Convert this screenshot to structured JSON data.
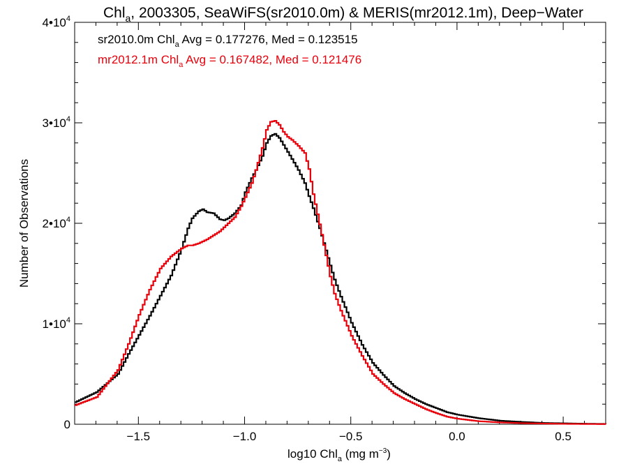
{
  "chart_data": {
    "type": "line",
    "title": {
      "prefix": "Chl",
      "sub": "a",
      "rest": ", 2003305, SeaWiFS(sr2010.0m) & MERIS(mr2012.1m), Deep−Water"
    },
    "xlabel": {
      "prefix": "log10 Chl",
      "sub": "a",
      "mid": " (mg m",
      "sup": "−3",
      "end": ")"
    },
    "ylabel": "Number of Observations",
    "xlim": [
      -1.8,
      0.7
    ],
    "ylim": [
      0,
      40000
    ],
    "x_ticks": [
      {
        "value": -1.5,
        "label": "−1.5"
      },
      {
        "value": -1.0,
        "label": "−1.0"
      },
      {
        "value": -0.5,
        "label": "−0.5"
      },
      {
        "value": 0.0,
        "label": "0.0"
      },
      {
        "value": 0.5,
        "label": "0.5"
      }
    ],
    "x_minor_step": 0.1,
    "y_ticks": [
      {
        "value": 0,
        "mant": "0",
        "exp": ""
      },
      {
        "value": 10000,
        "mant": "1•10",
        "exp": "4"
      },
      {
        "value": 20000,
        "mant": "2•10",
        "exp": "4"
      },
      {
        "value": 30000,
        "mant": "3•10",
        "exp": "4"
      },
      {
        "value": 40000,
        "mant": "4•10",
        "exp": "4"
      }
    ],
    "y_minor_step": 2000,
    "grid": false,
    "legend_position": "top-left",
    "series": [
      {
        "name": "sr2010.0m",
        "color": "#000000",
        "legend": {
          "pre": "sr2010.0m Chl",
          "sub": "a",
          "post": " Avg = 0.177276, Med = 0.123515"
        },
        "x": [
          -1.8,
          -1.7,
          -1.6,
          -1.55,
          -1.5,
          -1.45,
          -1.4,
          -1.35,
          -1.3,
          -1.27,
          -1.25,
          -1.22,
          -1.2,
          -1.18,
          -1.15,
          -1.12,
          -1.1,
          -1.08,
          -1.05,
          -1.02,
          -1.0,
          -0.97,
          -0.95,
          -0.92,
          -0.9,
          -0.88,
          -0.86,
          -0.84,
          -0.82,
          -0.8,
          -0.78,
          -0.75,
          -0.72,
          -0.7,
          -0.68,
          -0.65,
          -0.62,
          -0.6,
          -0.58,
          -0.55,
          -0.5,
          -0.45,
          -0.4,
          -0.35,
          -0.3,
          -0.25,
          -0.2,
          -0.15,
          -0.1,
          -0.05,
          0.0,
          0.1,
          0.2,
          0.3,
          0.4,
          0.5,
          0.6,
          0.7
        ],
        "y": [
          2200,
          3200,
          5000,
          7000,
          8900,
          10800,
          12800,
          14800,
          17500,
          19500,
          20500,
          21200,
          21400,
          21100,
          21000,
          20400,
          20300,
          20500,
          21000,
          21800,
          23100,
          24500,
          25300,
          26700,
          28000,
          28700,
          28900,
          28500,
          27800,
          27100,
          26400,
          25300,
          24000,
          22700,
          21500,
          19500,
          17300,
          15800,
          14400,
          12700,
          10100,
          7900,
          6100,
          4900,
          3800,
          3100,
          2500,
          2000,
          1600,
          1200,
          950,
          600,
          350,
          230,
          130,
          90,
          50,
          30
        ]
      },
      {
        "name": "mr2012.1m",
        "color": "#e8000b",
        "legend": {
          "pre": "mr2012.1m Chl",
          "sub": "a",
          "post": " Avg = 0.167482, Med = 0.121476"
        },
        "x": [
          -1.8,
          -1.7,
          -1.6,
          -1.55,
          -1.5,
          -1.45,
          -1.4,
          -1.35,
          -1.3,
          -1.27,
          -1.25,
          -1.22,
          -1.2,
          -1.18,
          -1.15,
          -1.12,
          -1.1,
          -1.08,
          -1.05,
          -1.02,
          -1.0,
          -0.97,
          -0.95,
          -0.92,
          -0.9,
          -0.88,
          -0.86,
          -0.84,
          -0.82,
          -0.8,
          -0.78,
          -0.75,
          -0.72,
          -0.7,
          -0.68,
          -0.65,
          -0.62,
          -0.6,
          -0.58,
          -0.55,
          -0.5,
          -0.45,
          -0.4,
          -0.35,
          -0.3,
          -0.25,
          -0.2,
          -0.15,
          -0.1,
          -0.05,
          0.0,
          0.1,
          0.2,
          0.3,
          0.4,
          0.5,
          0.6,
          0.7
        ],
        "y": [
          1900,
          2700,
          5400,
          8000,
          10900,
          13400,
          15500,
          16700,
          17500,
          17800,
          17800,
          18000,
          18200,
          18400,
          18800,
          19200,
          19600,
          20000,
          20600,
          21700,
          22600,
          24000,
          25300,
          27500,
          29300,
          30100,
          30200,
          29800,
          29100,
          28600,
          28300,
          27700,
          27000,
          25400,
          22900,
          19900,
          16800,
          14700,
          13000,
          11300,
          8800,
          6800,
          5000,
          4000,
          3100,
          2500,
          2000,
          1500,
          1100,
          750,
          550,
          300,
          180,
          110,
          70,
          40,
          25,
          15
        ]
      }
    ]
  }
}
